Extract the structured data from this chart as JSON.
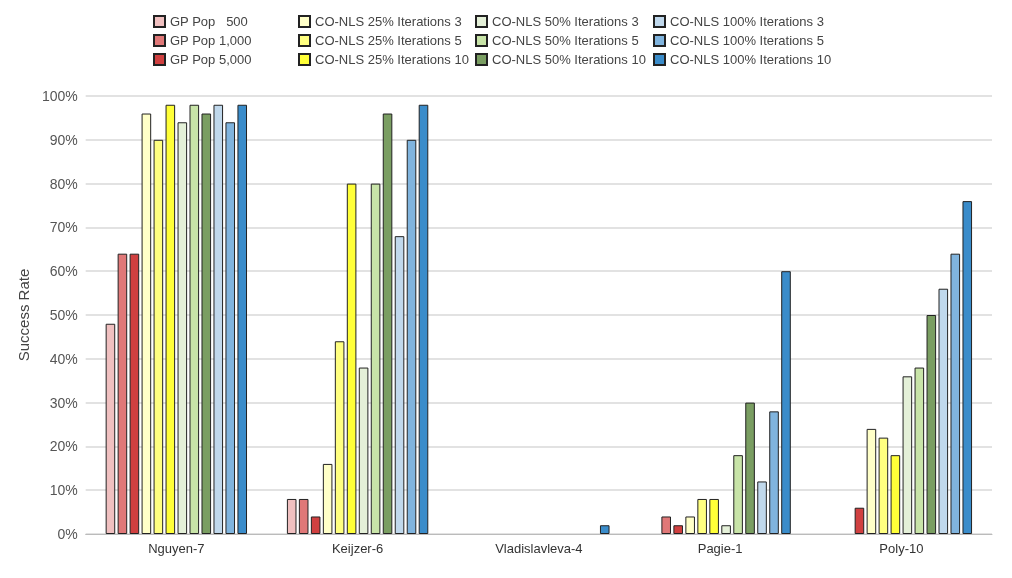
{
  "chart_data": {
    "type": "bar",
    "ylabel": "Success Rate",
    "categories": [
      "Nguyen-7",
      "Keijzer-6",
      "Vladislavleva-4",
      "Pagie-1",
      "Poly-10"
    ],
    "series": [
      {
        "name": "GP Pop   500",
        "color": "#f0c0c0",
        "values": [
          48,
          8,
          0,
          0,
          0
        ]
      },
      {
        "name": "GP Pop 1,000",
        "color": "#e07878",
        "values": [
          64,
          8,
          0,
          4,
          0
        ]
      },
      {
        "name": "GP Pop 5,000",
        "color": "#d04040",
        "values": [
          64,
          4,
          0,
          2,
          6
        ]
      },
      {
        "name": "CO-NLS 25% Iterations 3",
        "color": "#ffffc8",
        "values": [
          96,
          16,
          0,
          4,
          24
        ]
      },
      {
        "name": "CO-NLS 25% Iterations 5",
        "color": "#ffff80",
        "values": [
          90,
          44,
          0,
          8,
          22
        ]
      },
      {
        "name": "CO-NLS 25% Iterations 10",
        "color": "#ffff38",
        "values": [
          98,
          80,
          0,
          8,
          18
        ]
      },
      {
        "name": "CO-NLS 50% Iterations 3",
        "color": "#e4f0d8",
        "values": [
          94,
          38,
          0,
          2,
          36
        ]
      },
      {
        "name": "CO-NLS 50% Iterations 5",
        "color": "#c8e4a8",
        "values": [
          98,
          80,
          0,
          18,
          38
        ]
      },
      {
        "name": "CO-NLS 50% Iterations 10",
        "color": "#7a9e62",
        "values": [
          96,
          96,
          0,
          30,
          50
        ]
      },
      {
        "name": "CO-NLS 100% Iterations 3",
        "color": "#c0d8ec",
        "values": [
          98,
          68,
          0,
          12,
          56
        ]
      },
      {
        "name": "CO-NLS 100% Iterations 5",
        "color": "#80b4de",
        "values": [
          94,
          90,
          0,
          28,
          64
        ]
      },
      {
        "name": "CO-NLS 100% Iterations 10",
        "color": "#3a8cca",
        "values": [
          98,
          98,
          2,
          60,
          76
        ]
      }
    ],
    "ylim": [
      0,
      100
    ],
    "yticks": [
      {
        "value": 0,
        "label": "0%"
      },
      {
        "value": 10,
        "label": "10%"
      },
      {
        "value": 20,
        "label": "20%"
      },
      {
        "value": 30,
        "label": "30%"
      },
      {
        "value": 40,
        "label": "40%"
      },
      {
        "value": 50,
        "label": "50%"
      },
      {
        "value": 60,
        "label": "60%"
      },
      {
        "value": 70,
        "label": "70%"
      },
      {
        "value": 80,
        "label": "80%"
      },
      {
        "value": 90,
        "label": "90%"
      },
      {
        "value": 100,
        "label": "100%"
      }
    ],
    "grid": "y",
    "legend": "top"
  }
}
